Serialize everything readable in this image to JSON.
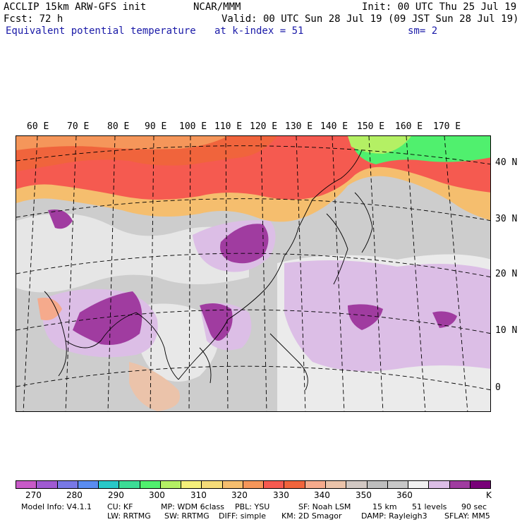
{
  "header": {
    "line1_left": "ACCLIP 15km ARW-GFS init",
    "line1_center": "NCAR/MMM",
    "line1_right": "Init: 00 UTC Thu 25 Jul 19",
    "line2_left": "Fcst:   72 h",
    "line2_right": "Valid: 00 UTC Sun 28 Jul 19 (09 JST Sun 28 Jul 19)",
    "line3_left": "Equivalent potential temperature",
    "line3_center": "at k-index =  51",
    "line3_right": "sm= 2"
  },
  "map": {
    "lon_labels": [
      "60 E",
      "70 E",
      "80 E",
      "90 E",
      "100 E",
      "110 E",
      "120 E",
      "130 E",
      "140 E",
      "150 E",
      "160 E",
      "170 E"
    ],
    "lat_labels": [
      "40 N",
      "30 N",
      "20 N",
      "10 N",
      "0"
    ]
  },
  "colorbar": {
    "colors": [
      "#c85ac8",
      "#a05ad2",
      "#7878e6",
      "#5a8cf0",
      "#28c8c8",
      "#3cdc96",
      "#50f06e",
      "#b4f064",
      "#f5f07a",
      "#f5dc78",
      "#f5be6e",
      "#f5965a",
      "#f55a50",
      "#f0643c",
      "#f5aa8c",
      "#ebc3aa",
      "#d2c8c3",
      "#bebebe",
      "#c8c8c8",
      "#f0f0f0",
      "#dcbee6",
      "#a03ca0",
      "#780078"
    ],
    "labels": [
      "270",
      "280",
      "290",
      "300",
      "310",
      "320",
      "330",
      "340",
      "350",
      "360"
    ],
    "unit": "K"
  },
  "footer": {
    "line1": [
      "Model Info: V4.1.1",
      "CU: KF",
      "MP: WDM 6class",
      "PBL: YSU",
      "SF: Noah LSM",
      "15 km",
      "51 levels",
      "90 sec"
    ],
    "line2": [
      "LW: RRTMG",
      "SW: RRTMG",
      "DIFF: simple",
      "KM: 2D Smagor",
      "DAMP: Rayleigh3",
      "SFLAY: MM5"
    ]
  }
}
